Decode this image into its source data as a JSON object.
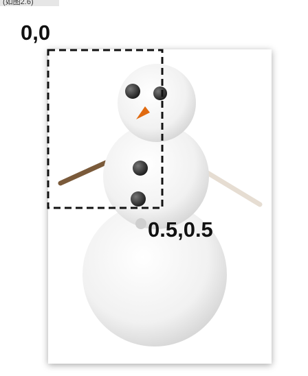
{
  "caption": "(如图2.6)",
  "labels": {
    "origin": "0,0",
    "center": "0.5,0.5"
  }
}
